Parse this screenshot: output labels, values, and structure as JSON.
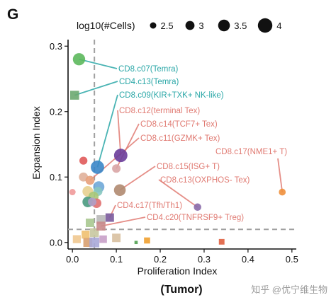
{
  "panel_letter": "G",
  "subtitle": "(Tumor)",
  "watermark": "知乎 @优宁维生物",
  "chart_data": {
    "type": "scatter",
    "xlabel": "Proliferation Index",
    "ylabel": "Expansion Index",
    "xlim": [
      -0.01,
      0.51
    ],
    "ylim": [
      -0.01,
      0.31
    ],
    "xticks": [
      0.0,
      0.1,
      0.2,
      0.3,
      0.4,
      0.5
    ],
    "yticks": [
      0.0,
      0.1,
      0.2,
      0.3
    ],
    "xtick_labels": [
      "0.0",
      "0.1",
      "0.2",
      "0.3",
      "0.4",
      "0.5"
    ],
    "ytick_labels": [
      "0.0",
      "0.1",
      "0.2",
      "0.3"
    ],
    "threshold_lines": {
      "x": 0.05,
      "y": 0.02,
      "style": "dashed",
      "color": "#a0a0a0"
    },
    "grid": false,
    "legend": {
      "title": "log10(#Cells)",
      "placement": "top",
      "entries": [
        {
          "label": "2.5",
          "size_value": 2.5
        },
        {
          "label": "3",
          "size_value": 3
        },
        {
          "label": "3.5",
          "size_value": 3.5
        },
        {
          "label": "4",
          "size_value": 4
        }
      ]
    },
    "labeled_points": [
      {
        "name": "CD8.c07(Temra)",
        "x": 0.015,
        "y": 0.28,
        "shape": "circle",
        "size": 3.6,
        "color": "#5cb85c",
        "label_color": "#2aa7a7"
      },
      {
        "name": "CD4.c13(Temra)",
        "x": 0.005,
        "y": 0.225,
        "shape": "square",
        "size": 3.2,
        "color": "#6ca870",
        "label_color": "#2aa7a7"
      },
      {
        "name": "CD8.c09(KIR+TXK+ NK-like)",
        "x": 0.057,
        "y": 0.115,
        "shape": "circle",
        "size": 3.8,
        "color": "#3a86c8",
        "label_color": "#2aa7a7"
      },
      {
        "name": "CD8.c12(terminal Tex)",
        "x": 0.11,
        "y": 0.133,
        "shape": "circle",
        "size": 3.8,
        "color": "#6a3d9a",
        "label_color": "#e07a72"
      },
      {
        "name": "CD8.c14(TCF7+ Tex)",
        "x": 0.1,
        "y": 0.113,
        "shape": "circle",
        "size": 2.9,
        "color": "#d9a5a5",
        "label_color": "#e07a72"
      },
      {
        "name": "CD8.c11(GZMK+ Tex)",
        "x": 0.04,
        "y": 0.095,
        "shape": "circle",
        "size": 3.0,
        "color": "#e8a07a",
        "label_color": "#e07a72"
      },
      {
        "name": "CD8.c17(NME1+ T)",
        "x": 0.478,
        "y": 0.077,
        "shape": "circle",
        "size": 2.6,
        "color": "#f0903c",
        "label_color": "#e07a72"
      },
      {
        "name": "CD8.c15(ISG+ T)",
        "x": 0.108,
        "y": 0.08,
        "shape": "circle",
        "size": 3.5,
        "color": "#b08a70",
        "label_color": "#e07a72"
      },
      {
        "name": "CD8.c13(OXPHOS- Tex)",
        "x": 0.285,
        "y": 0.054,
        "shape": "circle",
        "size": 2.7,
        "color": "#8a6aa8",
        "label_color": "#e07a72"
      },
      {
        "name": "CD4.c17(Tfh/Th1)",
        "x": 0.085,
        "y": 0.038,
        "shape": "square",
        "size": 3.1,
        "color": "#7a5a9c",
        "label_color": "#e07a72"
      },
      {
        "name": "CD4.c20(TNFRSF9+ Treg)",
        "x": 0.065,
        "y": 0.025,
        "shape": "square",
        "size": 3.2,
        "color": "#c98a8a",
        "label_color": "#e07a72"
      }
    ],
    "other_points": [
      {
        "x": 0.025,
        "y": 0.125,
        "shape": "circle",
        "size": 2.8,
        "color": "#e05a5a"
      },
      {
        "x": 0.025,
        "y": 0.1,
        "shape": "circle",
        "size": 3.0,
        "color": "#e0b09a"
      },
      {
        "x": 0.06,
        "y": 0.085,
        "shape": "circle",
        "size": 3.4,
        "color": "#6fa8d8"
      },
      {
        "x": 0.035,
        "y": 0.078,
        "shape": "circle",
        "size": 3.3,
        "color": "#e8d090"
      },
      {
        "x": 0.058,
        "y": 0.078,
        "shape": "circle",
        "size": 3.0,
        "color": "#88c8c0"
      },
      {
        "x": 0.0,
        "y": 0.077,
        "shape": "circle",
        "size": 2.5,
        "color": "#f09a9a"
      },
      {
        "x": 0.048,
        "y": 0.07,
        "shape": "circle",
        "size": 3.2,
        "color": "#a8c878"
      },
      {
        "x": 0.035,
        "y": 0.062,
        "shape": "circle",
        "size": 3.3,
        "color": "#4a9a80"
      },
      {
        "x": 0.055,
        "y": 0.06,
        "shape": "circle",
        "size": 3.1,
        "color": "#e07070"
      },
      {
        "x": 0.045,
        "y": 0.062,
        "shape": "circle",
        "size": 2.9,
        "color": "#b0a0c8"
      },
      {
        "x": 0.065,
        "y": 0.035,
        "shape": "square",
        "size": 3.2,
        "color": "#b8b8b8"
      },
      {
        "x": 0.04,
        "y": 0.03,
        "shape": "square",
        "size": 3.1,
        "color": "#a8c890"
      },
      {
        "x": 0.05,
        "y": 0.015,
        "shape": "square",
        "size": 3.2,
        "color": "#c8c8a0"
      },
      {
        "x": 0.03,
        "y": 0.012,
        "shape": "square",
        "size": 3.0,
        "color": "#f0c070"
      },
      {
        "x": 0.01,
        "y": 0.005,
        "shape": "square",
        "size": 3.0,
        "color": "#f0c890"
      },
      {
        "x": 0.035,
        "y": 0.0,
        "shape": "square",
        "size": 3.2,
        "color": "#d8a070"
      },
      {
        "x": 0.05,
        "y": 0.0,
        "shape": "square",
        "size": 3.4,
        "color": "#a8a8d8"
      },
      {
        "x": 0.07,
        "y": 0.005,
        "shape": "square",
        "size": 2.9,
        "color": "#c8a0c8"
      },
      {
        "x": 0.1,
        "y": 0.007,
        "shape": "square",
        "size": 3.1,
        "color": "#d8c0a0"
      },
      {
        "x": 0.17,
        "y": 0.003,
        "shape": "square",
        "size": 2.6,
        "color": "#f0a030"
      },
      {
        "x": 0.145,
        "y": 0.0,
        "shape": "square",
        "size": 2.0,
        "color": "#50a050"
      },
      {
        "x": 0.34,
        "y": 0.001,
        "shape": "square",
        "size": 2.5,
        "color": "#e06040"
      }
    ]
  }
}
